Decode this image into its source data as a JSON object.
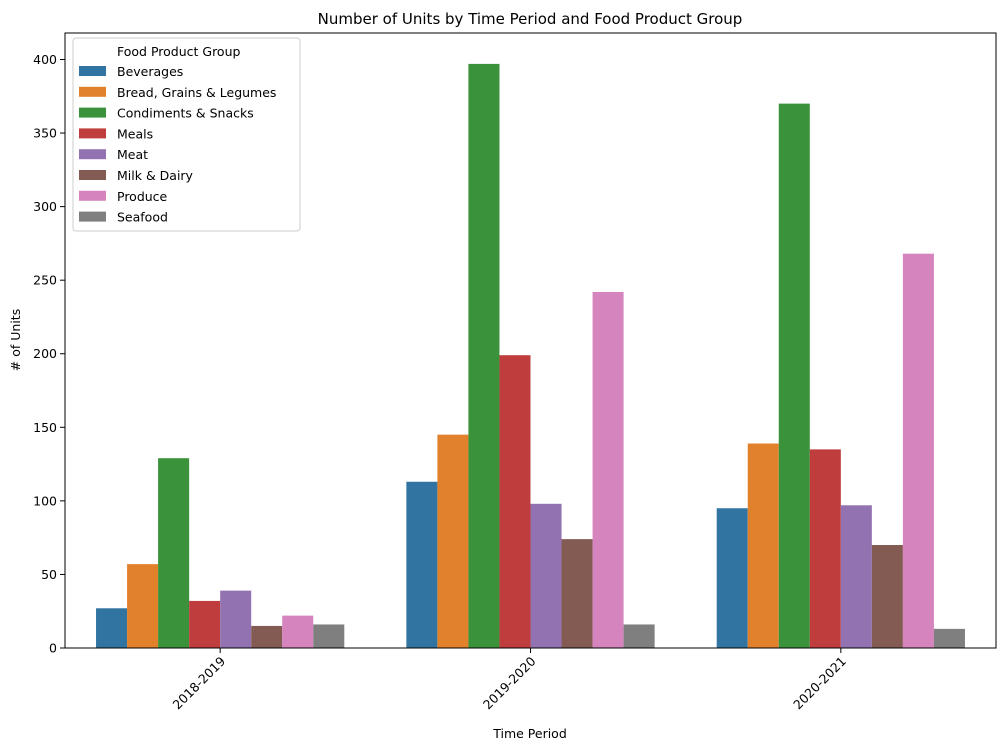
{
  "chart_data": {
    "type": "bar",
    "title": "Number of Units by Time Period and Food Product Group",
    "xlabel": "Time Period",
    "ylabel": "# of Units",
    "categories": [
      "2018-2019",
      "2019-2020",
      "2020-2021"
    ],
    "ylim": [
      0,
      418
    ],
    "yticks": [
      0,
      50,
      100,
      150,
      200,
      250,
      300,
      350,
      400
    ],
    "grid": false,
    "legend": {
      "title": "Food Product Group",
      "placement": "top-left"
    },
    "series": [
      {
        "name": "Beverages",
        "color": "#3274a1",
        "values": [
          27,
          113,
          95
        ]
      },
      {
        "name": "Bread, Grains & Legumes",
        "color": "#e1812c",
        "values": [
          57,
          145,
          139
        ]
      },
      {
        "name": "Condiments & Snacks",
        "color": "#3a923a",
        "values": [
          129,
          397,
          370
        ]
      },
      {
        "name": "Meals",
        "color": "#c03d3e",
        "values": [
          32,
          199,
          135
        ]
      },
      {
        "name": "Meat",
        "color": "#9372b2",
        "values": [
          39,
          98,
          97
        ]
      },
      {
        "name": "Milk & Dairy",
        "color": "#845b53",
        "values": [
          15,
          74,
          70
        ]
      },
      {
        "name": "Produce",
        "color": "#d684bd",
        "values": [
          22,
          242,
          268
        ]
      },
      {
        "name": "Seafood",
        "color": "#7f7f7f",
        "values": [
          16,
          16,
          13
        ]
      }
    ]
  }
}
